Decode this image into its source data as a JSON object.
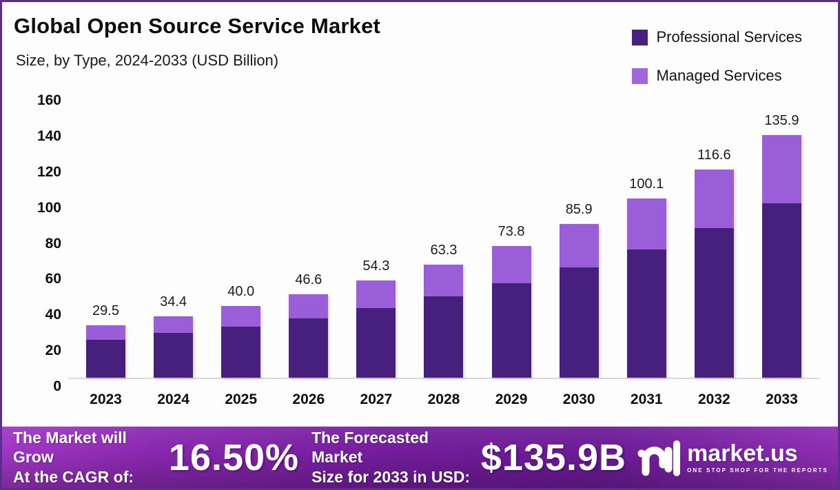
{
  "page": {
    "border_color": "#5B2D8F",
    "background_color": "#FEFDFE"
  },
  "header": {
    "title": "Global Open Source Service Market",
    "subtitle": "Size, by Type, 2024-2033 (USD Billion)"
  },
  "legend": {
    "items": [
      {
        "label": "Professional Services",
        "color": "#4A1E80"
      },
      {
        "label": "Managed Services",
        "color": "#9F66DF"
      }
    ]
  },
  "chart_data": {
    "type": "bar",
    "stacked": true,
    "title": "Global Open Source Service Market",
    "subtitle": "Size, by Type, 2024-2033 (USD Billion)",
    "unit": "USD Billion",
    "categories": [
      "2023",
      "2024",
      "2025",
      "2026",
      "2027",
      "2028",
      "2029",
      "2030",
      "2031",
      "2032",
      "2033"
    ],
    "series": [
      {
        "name": "Professional Services",
        "color": "#47207E",
        "values": [
          21.2,
          25.0,
          28.7,
          33.2,
          38.9,
          45.6,
          52.8,
          61.6,
          71.9,
          83.6,
          97.6
        ]
      },
      {
        "name": "Managed Services",
        "color": "#9A5FD8",
        "values": [
          8.3,
          9.4,
          11.3,
          13.4,
          15.4,
          17.7,
          21.0,
          24.3,
          28.2,
          33.0,
          38.3
        ]
      }
    ],
    "totals": [
      29.5,
      34.4,
      40.0,
      46.6,
      54.3,
      63.3,
      73.8,
      85.9,
      100.1,
      116.6,
      135.9
    ],
    "total_labels": [
      "29.5",
      "34.4",
      "40.0",
      "46.6",
      "54.3",
      "63.3",
      "73.8",
      "85.9",
      "100.1",
      "116.6",
      "135.9"
    ],
    "ytick_labels": [
      "0",
      "20",
      "40",
      "60",
      "80",
      "100",
      "120",
      "140",
      "160"
    ],
    "yticks": [
      0,
      20,
      40,
      60,
      80,
      100,
      120,
      140,
      160
    ],
    "ylim": [
      0,
      160
    ],
    "xlabel": "",
    "ylabel": "",
    "grid": false,
    "legend_position": "top-right",
    "axis_line_color": "#D9D9D9"
  },
  "footer": {
    "cagr_label_line1": "The Market will Grow",
    "cagr_label_line2": "At the CAGR of:",
    "cagr_value": "16.50%",
    "forecast_label_line1": "The Forecasted Market",
    "forecast_label_line2": "Size for 2033 in USD:",
    "forecast_value": "$135.9B",
    "brand_name": "market.us",
    "brand_tagline": "ONE STOP SHOP FOR THE REPORTS"
  }
}
